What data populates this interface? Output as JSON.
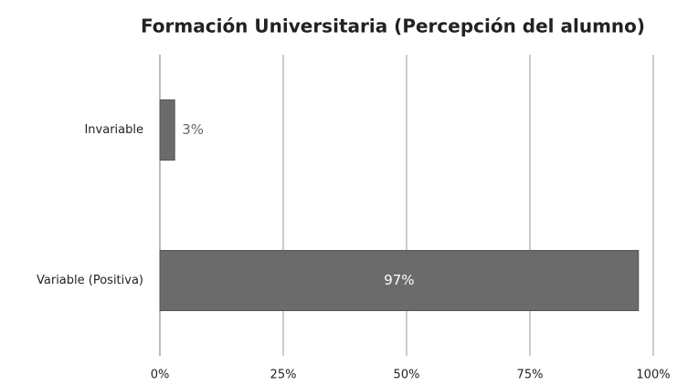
{
  "chart_data": {
    "type": "bar",
    "orientation": "horizontal",
    "title": "Formación Universitaria (Percepción del alumno)",
    "categories": [
      "Invariable",
      "Variable (Positiva)"
    ],
    "values": [
      3,
      97
    ],
    "value_labels": [
      "3%",
      "97%"
    ],
    "color": "#6b6b6b",
    "xlim": [
      0,
      100
    ],
    "xticks": [
      {
        "value": 0,
        "label": "0%"
      },
      {
        "value": 25,
        "label": "25%"
      },
      {
        "value": 50,
        "label": "50%"
      },
      {
        "value": 75,
        "label": "75%"
      },
      {
        "value": 100,
        "label": "100%"
      }
    ],
    "grid": true
  }
}
